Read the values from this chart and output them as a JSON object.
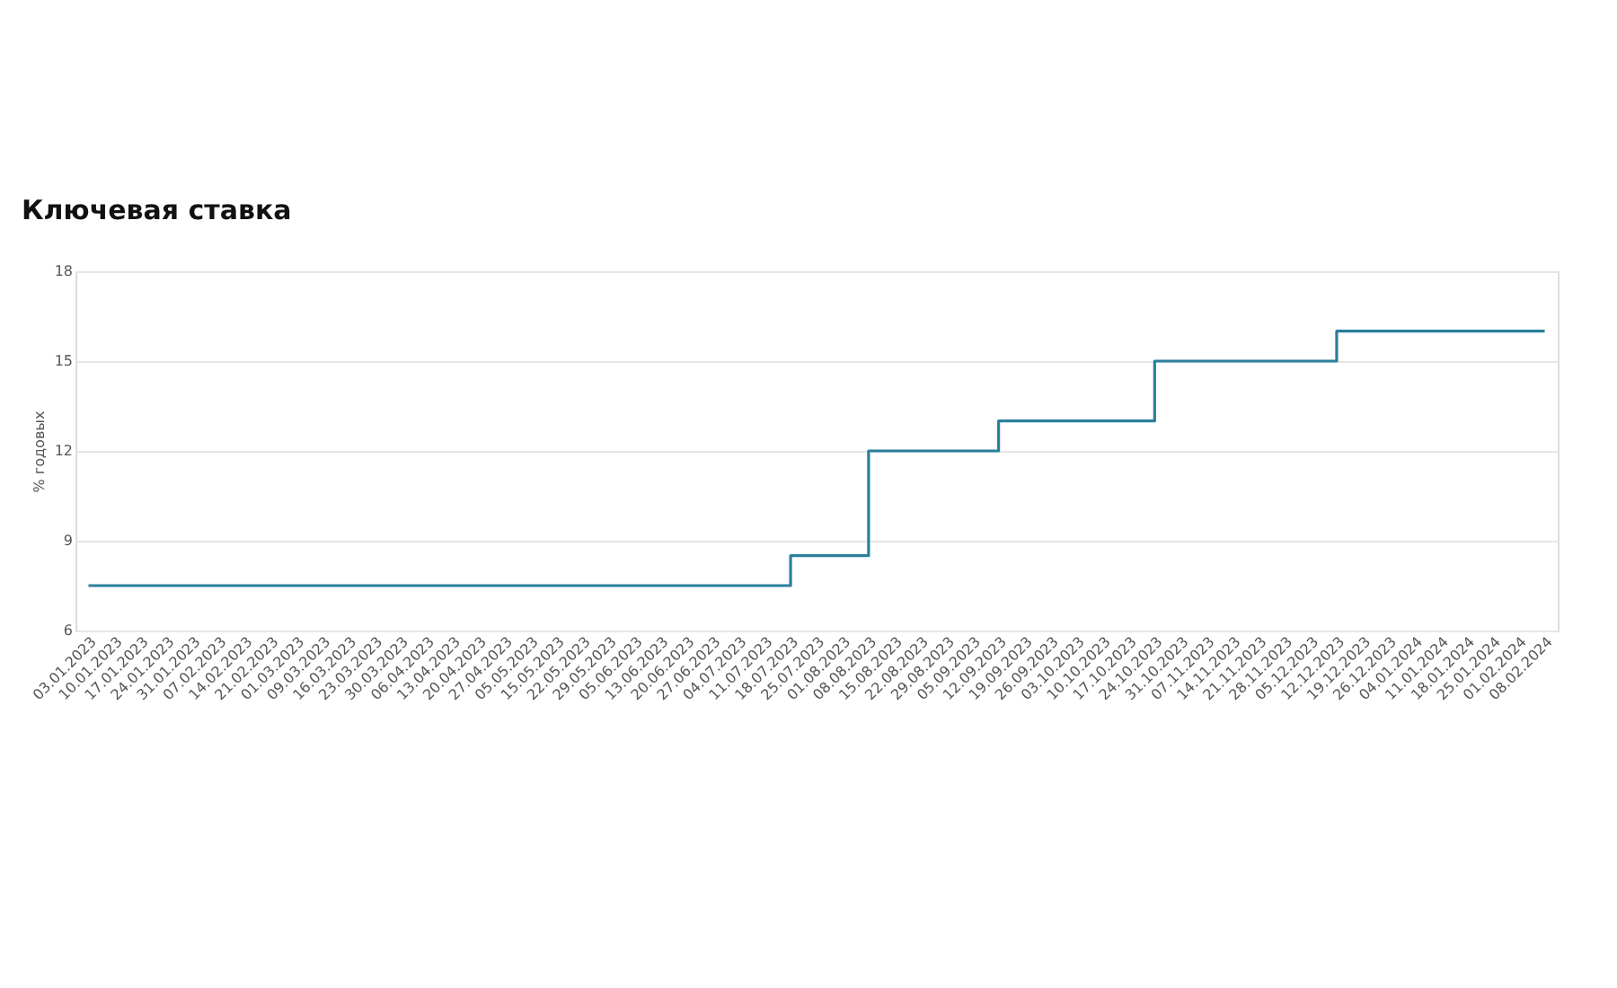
{
  "chart_data": {
    "type": "step",
    "title": "Ключевая ставка",
    "ylabel": "% годовых",
    "categories": [
      "03.01.2023",
      "10.01.2023",
      "17.01.2023",
      "24.01.2023",
      "31.01.2023",
      "07.02.2023",
      "14.02.2023",
      "21.02.2023",
      "01.03.2023",
      "09.03.2023",
      "16.03.2023",
      "23.03.2023",
      "30.03.2023",
      "06.04.2023",
      "13.04.2023",
      "20.04.2023",
      "27.04.2023",
      "05.05.2023",
      "15.05.2023",
      "22.05.2023",
      "29.05.2023",
      "05.06.2023",
      "13.06.2023",
      "20.06.2023",
      "27.06.2023",
      "04.07.2023",
      "11.07.2023",
      "18.07.2023",
      "25.07.2023",
      "01.08.2023",
      "08.08.2023",
      "15.08.2023",
      "22.08.2023",
      "29.08.2023",
      "05.09.2023",
      "12.09.2023",
      "19.09.2023",
      "26.09.2023",
      "03.10.2023",
      "10.10.2023",
      "17.10.2023",
      "24.10.2023",
      "31.10.2023",
      "07.11.2023",
      "14.11.2023",
      "21.11.2023",
      "28.11.2023",
      "05.12.2023",
      "12.12.2023",
      "19.12.2023",
      "26.12.2023",
      "04.01.2024",
      "11.01.2024",
      "18.01.2024",
      "25.01.2024",
      "01.02.2024",
      "08.02.2024"
    ],
    "series": [
      {
        "color": "#2b7f9c",
        "values": [
          7.5,
          7.5,
          7.5,
          7.5,
          7.5,
          7.5,
          7.5,
          7.5,
          7.5,
          7.5,
          7.5,
          7.5,
          7.5,
          7.5,
          7.5,
          7.5,
          7.5,
          7.5,
          7.5,
          7.5,
          7.5,
          7.5,
          7.5,
          7.5,
          7.5,
          7.5,
          7.5,
          7.5,
          8.5,
          8.5,
          8.5,
          12,
          12,
          12,
          12,
          12,
          13,
          13,
          13,
          13,
          13,
          13,
          15,
          15,
          15,
          15,
          15,
          15,
          15,
          16,
          16,
          16,
          16,
          16,
          16,
          16,
          16
        ]
      }
    ],
    "ylim": [
      6,
      18
    ],
    "yticks": [
      6,
      9,
      12,
      15,
      18
    ],
    "grid": "y",
    "line_style": "solid",
    "marker": "none"
  }
}
